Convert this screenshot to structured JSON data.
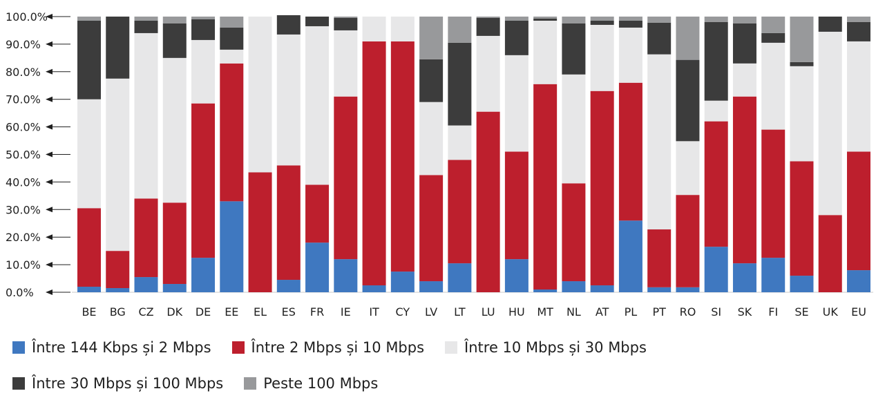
{
  "chart_data": {
    "type": "bar",
    "stacked": true,
    "title": "",
    "xlabel": "",
    "ylabel": "",
    "ylim": [
      0,
      100
    ],
    "yticks": [
      "0.0%",
      "10.0%",
      "20.0%",
      "30.0%",
      "40.0%",
      "50.0%",
      "60.0%",
      "70.0%",
      "80.0%",
      "90.0%",
      "100.0%"
    ],
    "categories": [
      "BE",
      "BG",
      "CZ",
      "DK",
      "DE",
      "EE",
      "EL",
      "ES",
      "FR",
      "IE",
      "IT",
      "CY",
      "LV",
      "LT",
      "LU",
      "HU",
      "MT",
      "NL",
      "AT",
      "PL",
      "PT",
      "RO",
      "SI",
      "SK",
      "FI",
      "SE",
      "UK",
      "EU"
    ],
    "series": [
      {
        "name": "Între 144 Kbps și 2 Mbps",
        "color": "#3f78c0",
        "values": [
          2.0,
          1.5,
          5.5,
          3.0,
          12.5,
          33.0,
          0.0,
          4.5,
          18.0,
          12.0,
          2.5,
          7.5,
          4.0,
          10.5,
          0.0,
          12.0,
          1.0,
          4.0,
          2.5,
          26.0,
          1.8,
          1.8,
          16.5,
          10.5,
          12.5,
          6.0,
          0.0,
          8.0
        ]
      },
      {
        "name": "Între 2 Mbps și 10 Mbps",
        "color": "#bd1f2d",
        "values": [
          28.5,
          13.5,
          28.5,
          29.5,
          56.0,
          50.0,
          43.5,
          41.5,
          21.0,
          59.0,
          88.5,
          83.5,
          38.5,
          37.5,
          65.5,
          39.0,
          74.5,
          35.5,
          70.5,
          50.0,
          21.0,
          33.5,
          45.5,
          60.5,
          46.5,
          41.5,
          28.0,
          43.0
        ]
      },
      {
        "name": "Între 10 Mbps și 30 Mbps",
        "color": "#e7e7e8",
        "values": [
          39.5,
          62.5,
          60.0,
          52.5,
          23.0,
          5.0,
          56.5,
          47.5,
          57.5,
          24.0,
          9.0,
          9.0,
          26.5,
          12.5,
          27.5,
          35.0,
          23.0,
          39.5,
          24.0,
          20.0,
          63.5,
          19.5,
          7.5,
          12.0,
          31.5,
          34.5,
          66.5,
          40.0
        ]
      },
      {
        "name": "Între 30 Mbps și 100 Mbps",
        "color": "#3c3c3c",
        "values": [
          28.5,
          22.5,
          4.5,
          12.5,
          7.5,
          8.0,
          0.0,
          7.0,
          3.5,
          4.5,
          0.0,
          0.0,
          15.5,
          30.0,
          6.5,
          12.5,
          0.8,
          18.5,
          1.5,
          2.5,
          11.5,
          29.5,
          28.5,
          14.5,
          3.5,
          1.5,
          5.5,
          7.0
        ]
      },
      {
        "name": "Peste 100 Mbps",
        "color": "#98999b",
        "values": [
          1.5,
          0.0,
          1.5,
          2.5,
          1.0,
          4.0,
          0.0,
          0.0,
          0.0,
          0.5,
          0.0,
          0.0,
          15.5,
          9.5,
          0.5,
          1.5,
          0.7,
          2.5,
          1.5,
          1.5,
          2.2,
          15.7,
          2.0,
          2.5,
          6.0,
          16.5,
          0.0,
          2.0
        ]
      }
    ],
    "legend_position": "bottom",
    "legend_rows": [
      [
        "Între 144 Kbps și 2 Mbps",
        "Între 2 Mbps și 10 Mbps",
        "Între 10 Mbps și 30 Mbps"
      ],
      [
        "Între 30 Mbps și 100 Mbps",
        "Peste 100 Mbps"
      ]
    ],
    "grid": false
  }
}
